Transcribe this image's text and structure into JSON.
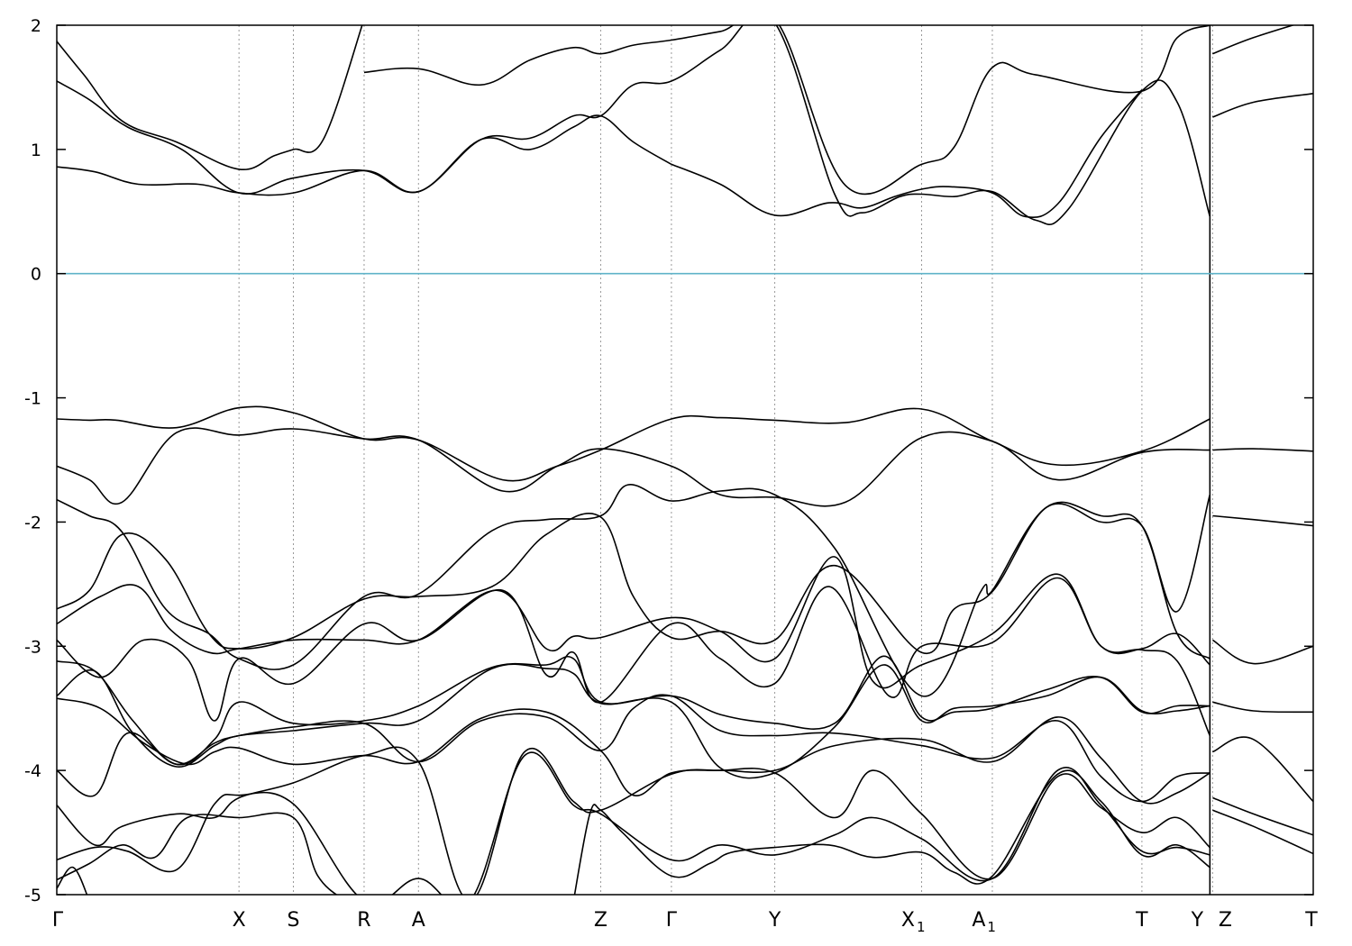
{
  "chart_data": {
    "type": "line",
    "title": "",
    "xlabel": "",
    "ylabel": "",
    "ylim": [
      -5,
      2
    ],
    "y_ticks": [
      2,
      1,
      0,
      -1,
      -2,
      -3,
      -4,
      -5
    ],
    "grid": false,
    "legend": "none",
    "fermi_level": 0,
    "colors": {
      "bands": "#000000",
      "fermi": "#5fb3c9",
      "kpath": "#9a9a9a"
    },
    "xlim": [
      0,
      23.1
    ],
    "kpoints": [
      {
        "label": "Γ",
        "sub": "",
        "x": 0
      },
      {
        "label": "X",
        "sub": "",
        "x": 3.35
      },
      {
        "label": "S",
        "sub": "",
        "x": 4.35
      },
      {
        "label": "R",
        "sub": "",
        "x": 5.65
      },
      {
        "label": "A",
        "sub": "",
        "x": 6.65
      },
      {
        "label": "Z",
        "sub": "",
        "x": 10.0
      },
      {
        "label": "Γ",
        "sub": "",
        "x": 11.3
      },
      {
        "label": "Y",
        "sub": "",
        "x": 13.2
      },
      {
        "label": "X",
        "sub": "1",
        "x": 15.9
      },
      {
        "label": "A",
        "sub": "1",
        "x": 17.2
      },
      {
        "label": "T",
        "sub": "",
        "x": 19.95
      },
      {
        "label": "Y",
        "sub": "",
        "x": 21.2
      },
      {
        "label": "Z",
        "sub": "",
        "x": 21.25
      },
      {
        "label": "T",
        "sub": "",
        "x": 23.1
      }
    ],
    "path_break_x": 21.2,
    "series": [
      {
        "x": [
          0,
          0.5,
          1.2,
          2.2,
          3.35,
          4.0,
          4.35,
          4.9,
          5.65
        ],
        "y": [
          1.87,
          1.6,
          1.23,
          1.06,
          0.84,
          0.95,
          1.0,
          1.08,
          2.05
        ]
      },
      {
        "x": [
          0,
          0.6,
          1.3,
          2.3,
          3.35,
          4.35,
          5.65,
          6.65,
          7.8,
          8.7,
          9.5,
          10.0,
          10.6,
          11.3
        ],
        "y": [
          1.55,
          1.4,
          1.18,
          1.0,
          0.65,
          0.77,
          0.83,
          0.66,
          1.08,
          1.0,
          1.18,
          1.27,
          1.06,
          0.88
        ]
      },
      {
        "x": [
          0,
          0.7,
          1.5,
          2.6,
          3.35,
          4.35,
          5.65,
          6.65,
          7.8,
          8.7,
          9.5,
          10.0,
          10.6,
          11.3,
          12.2,
          13.2,
          14.5,
          15.9,
          16.5,
          17.2,
          18.0,
          19.95,
          20.6,
          21.2
        ],
        "y": [
          0.86,
          0.82,
          0.72,
          0.72,
          0.65,
          0.65,
          0.83,
          0.66,
          1.08,
          1.09,
          1.27,
          1.27,
          1.52,
          1.55,
          1.8,
          2.05,
          0.71,
          0.88,
          1.02,
          1.66,
          1.6,
          1.47,
          1.9,
          2.0
        ]
      },
      {
        "x": [
          5.65,
          6.65,
          7.8,
          8.7,
          9.5,
          10.0,
          10.6,
          11.3,
          12.2,
          13.2,
          14.3,
          14.8,
          15.5,
          15.9,
          16.5,
          17.2,
          18.0,
          18.6,
          19.95,
          20.6,
          21.2
        ],
        "y": [
          1.62,
          1.65,
          1.52,
          1.72,
          1.82,
          1.77,
          1.84,
          1.88,
          1.95,
          2.02,
          0.64,
          0.49,
          0.62,
          0.64,
          0.62,
          0.66,
          0.43,
          0.52,
          1.47,
          1.38,
          0.46
        ]
      },
      {
        "x": [
          11.3,
          12.2,
          13.2,
          14.2,
          14.8,
          15.4,
          15.9,
          16.4,
          17.2,
          17.8,
          18.4,
          19.2,
          19.95
        ],
        "y": [
          0.88,
          0.72,
          0.47,
          0.57,
          0.53,
          0.62,
          0.68,
          0.7,
          0.65,
          0.46,
          0.56,
          1.1,
          1.48
        ]
      },
      {
        "x": [
          21.25,
          22.0,
          23.1
        ],
        "y": [
          1.77,
          1.9,
          2.05
        ]
      },
      {
        "x": [
          21.25,
          22.0,
          23.1
        ],
        "y": [
          1.26,
          1.38,
          1.45
        ]
      },
      {
        "x": [
          0,
          0.6,
          1.1,
          2.2,
          3.35,
          4.35,
          5.65,
          6.65,
          8.2,
          9.2,
          10.0,
          11.3,
          12.2,
          13.2,
          14.5,
          15.9,
          17.2,
          18.4,
          19.95,
          21.2
        ],
        "y": [
          -1.17,
          -1.18,
          -1.18,
          -1.24,
          -1.08,
          -1.12,
          -1.33,
          -1.34,
          -1.66,
          -1.55,
          -1.42,
          -1.17,
          -1.16,
          -1.18,
          -1.2,
          -1.09,
          -1.35,
          -1.54,
          -1.43,
          -1.17
        ]
      },
      {
        "x": [
          0,
          0.6,
          1.2,
          2.2,
          3.35,
          4.35,
          5.65,
          6.65,
          8.2,
          9.2,
          10.0,
          11.3,
          12.2,
          13.2,
          14.5,
          15.9,
          17.2,
          18.4,
          19.95,
          21.2
        ],
        "y": [
          -1.55,
          -1.66,
          -1.84,
          -1.28,
          -1.3,
          -1.25,
          -1.33,
          -1.34,
          -1.75,
          -1.55,
          -1.41,
          -1.55,
          -1.78,
          -1.8,
          -1.84,
          -1.32,
          -1.35,
          -1.66,
          -1.44,
          -1.42
        ]
      },
      {
        "x": [
          21.25,
          22.0,
          23.1
        ],
        "y": [
          -1.42,
          -1.41,
          -1.43
        ]
      },
      {
        "x": [
          0,
          0.6,
          1.2,
          2.0,
          2.8,
          3.35,
          4.35,
          5.65,
          6.65,
          8.0,
          9.0,
          10.0,
          10.5,
          11.3,
          12.2,
          13.2,
          14.3,
          15.9,
          17.0,
          17.2,
          18.2,
          19.2,
          19.95,
          20.6,
          21.2
        ],
        "y": [
          -1.82,
          -1.95,
          -2.08,
          -2.7,
          -2.9,
          -3.1,
          -3.15,
          -2.6,
          -2.58,
          -2.07,
          -1.98,
          -1.95,
          -1.7,
          -1.83,
          -1.75,
          -1.78,
          -2.21,
          -3.4,
          -2.55,
          -2.55,
          -1.88,
          -2.0,
          -2.03,
          -2.72,
          -1.78
        ]
      },
      {
        "x": [
          21.25,
          22.0,
          23.1
        ],
        "y": [
          -1.95,
          -1.98,
          -2.03
        ]
      },
      {
        "x": [
          0,
          0.6,
          1.2,
          2.0,
          2.8,
          3.35,
          4.35,
          5.65,
          6.65,
          8.0,
          9.0,
          10.0,
          10.6,
          11.3,
          12.2,
          13.2,
          14.3,
          15.9,
          16.5,
          17.2,
          18.2,
          19.2,
          19.95,
          20.6,
          21.2
        ],
        "y": [
          -2.7,
          -2.55,
          -2.1,
          -2.3,
          -2.9,
          -3.02,
          -2.93,
          -2.62,
          -2.6,
          -2.52,
          -2.1,
          -1.96,
          -2.6,
          -2.93,
          -2.88,
          -2.95,
          -2.35,
          -3.05,
          -2.7,
          -2.56,
          -1.88,
          -1.95,
          -2.03,
          -2.9,
          -3.1
        ]
      },
      {
        "x": [
          0,
          0.8,
          1.5,
          2.1,
          2.8,
          3.35,
          4.35,
          5.65,
          6.65,
          8.1,
          9.0,
          9.5,
          10.0,
          11.3,
          12.2,
          13.2,
          14.3,
          15.0,
          15.9,
          17.2,
          18.4,
          19.2,
          19.95,
          20.6,
          21.2
        ],
        "y": [
          -2.82,
          -2.6,
          -2.52,
          -2.87,
          -3.05,
          -3.02,
          -2.95,
          -2.95,
          -2.95,
          -2.55,
          -3.02,
          -2.92,
          -2.93,
          -2.77,
          -2.88,
          -3.1,
          -2.28,
          -3.28,
          -3.15,
          -2.9,
          -2.42,
          -3.0,
          -3.02,
          -2.9,
          -3.15
        ]
      },
      {
        "x": [
          21.25,
          22.0,
          23.1
        ],
        "y": [
          -2.95,
          -3.14,
          -3.0
        ]
      },
      {
        "x": [
          0,
          0.8,
          1.6,
          2.4,
          2.9,
          3.35,
          4.35,
          5.65,
          6.65,
          8.2,
          9.0,
          9.5,
          10.0,
          11.3,
          12.2,
          13.2,
          14.2,
          15.3,
          15.9,
          17.2,
          18.4,
          19.2,
          19.95,
          20.6,
          21.2
        ],
        "y": [
          -2.95,
          -3.25,
          -2.95,
          -3.1,
          -3.6,
          -3.1,
          -3.3,
          -2.82,
          -2.95,
          -2.55,
          -3.23,
          -3.05,
          -3.45,
          -2.82,
          -3.1,
          -3.3,
          -2.52,
          -3.4,
          -3.0,
          -2.97,
          -2.45,
          -3.0,
          -3.03,
          -3.12,
          -3.72
        ]
      },
      {
        "x": [
          0,
          0.7,
          1.4,
          2.2,
          2.9,
          3.35,
          4.35,
          5.65,
          6.65,
          8.0,
          9.0,
          9.5,
          10.0,
          11.3,
          12.2,
          13.2,
          14.3,
          15.2,
          15.9,
          16.5,
          17.2,
          18.2,
          19.2,
          19.95,
          20.6,
          21.2
        ],
        "y": [
          -3.12,
          -3.2,
          -3.6,
          -3.95,
          -3.75,
          -3.45,
          -3.62,
          -3.6,
          -3.48,
          -3.17,
          -3.15,
          -3.1,
          -3.45,
          -3.4,
          -3.55,
          -3.62,
          -3.62,
          -3.08,
          -3.57,
          -3.53,
          -3.5,
          -3.35,
          -3.25,
          -3.53,
          -3.48,
          -3.48
        ]
      },
      {
        "x": [
          0,
          0.7,
          1.4,
          2.2,
          2.9,
          3.35,
          4.35,
          5.65,
          6.65,
          8.0,
          9.0,
          9.5,
          10.0,
          11.3,
          12.2,
          13.2,
          14.3,
          15.2,
          15.9,
          16.5,
          17.2,
          18.2,
          19.2,
          19.95,
          20.6,
          21.2
        ],
        "y": [
          -3.4,
          -3.2,
          -3.7,
          -3.97,
          -3.8,
          -3.72,
          -3.68,
          -3.62,
          -3.6,
          -3.18,
          -3.18,
          -3.22,
          -3.46,
          -3.45,
          -3.98,
          -4.02,
          -3.65,
          -3.15,
          -3.6,
          -3.5,
          -3.48,
          -3.4,
          -3.25,
          -3.52,
          -3.52,
          -3.48
        ]
      },
      {
        "x": [
          21.25,
          22.0,
          23.1
        ],
        "y": [
          -3.45,
          -3.52,
          -3.53
        ]
      },
      {
        "x": [
          0,
          0.8,
          1.6,
          2.4,
          2.9,
          3.35,
          4.35,
          5.65,
          6.65,
          7.8,
          9.0,
          10.0,
          10.6,
          11.3,
          12.2,
          13.2,
          14.3,
          15.9,
          17.2,
          18.4,
          19.2,
          19.95,
          20.6,
          21.2
        ],
        "y": [
          -3.42,
          -3.5,
          -3.78,
          -3.95,
          -3.85,
          -3.82,
          -3.95,
          -3.88,
          -3.93,
          -3.58,
          -3.53,
          -3.84,
          -4.2,
          -4.02,
          -4.0,
          -4.0,
          -3.8,
          -3.75,
          -3.93,
          -3.57,
          -3.9,
          -4.25,
          -4.18,
          -4.02
        ]
      },
      {
        "x": [
          0,
          0.7,
          1.3,
          2.2,
          2.9,
          3.35,
          4.35,
          5.65,
          6.65,
          7.8,
          9.0,
          10.0,
          10.6,
          11.3,
          12.2,
          13.2,
          14.3,
          15.9,
          17.2,
          18.4,
          19.2,
          19.95,
          20.6,
          21.2
        ],
        "y": [
          -4.0,
          -4.2,
          -3.7,
          -3.95,
          -3.78,
          -3.72,
          -3.65,
          -3.62,
          -3.93,
          -3.6,
          -3.57,
          -3.84,
          -3.5,
          -3.4,
          -3.68,
          -3.72,
          -3.7,
          -3.8,
          -3.9,
          -3.6,
          -4.05,
          -4.25,
          -4.05,
          -4.02
        ]
      },
      {
        "x": [
          21.25,
          22.0,
          23.1
        ],
        "y": [
          -3.85,
          -3.75,
          -4.25
        ]
      },
      {
        "x": [
          0,
          0.7,
          1.2,
          2.2,
          2.9,
          3.35,
          4.35,
          5.65,
          6.65,
          7.6,
          8.6,
          9.5,
          10.0,
          11.3,
          12.2,
          13.2,
          14.3,
          15.0,
          15.9,
          17.2,
          18.4,
          19.2,
          19.95,
          20.6,
          21.2
        ],
        "y": [
          -4.28,
          -4.6,
          -4.45,
          -4.35,
          -4.38,
          -4.22,
          -4.1,
          -3.88,
          -3.93,
          -5.05,
          -3.85,
          -4.25,
          -4.32,
          -4.03,
          -4.0,
          -4.02,
          -4.38,
          -4.0,
          -4.35,
          -4.87,
          -4.05,
          -4.3,
          -4.5,
          -4.38,
          -4.62
        ]
      },
      {
        "x": [
          0,
          0.7,
          1.3,
          2.2,
          2.9,
          3.35,
          4.35,
          5.65,
          6.65,
          7.6,
          8.6,
          9.5,
          10.0,
          11.3,
          12.2,
          13.2,
          14.3,
          15.0,
          15.9,
          17.2,
          18.4,
          19.2,
          19.95,
          20.6,
          21.2
        ],
        "y": [
          -4.72,
          -4.62,
          -4.65,
          -4.8,
          -4.27,
          -4.2,
          -4.27,
          -5.05,
          -4.87,
          -5.05,
          -3.88,
          -4.28,
          -4.35,
          -4.72,
          -4.6,
          -4.68,
          -4.52,
          -4.38,
          -4.55,
          -4.87,
          -4.0,
          -4.28,
          -4.65,
          -4.62,
          -4.68
        ]
      },
      {
        "x": [
          21.25,
          22.0,
          23.1
        ],
        "y": [
          -4.22,
          -4.35,
          -4.52
        ]
      },
      {
        "x": [
          0,
          0.6,
          1.2,
          1.8,
          2.4,
          3.35,
          4.35,
          4.8,
          5.3
        ],
        "y": [
          -4.88,
          -4.75,
          -4.6,
          -4.7,
          -4.38,
          -4.38,
          -4.38,
          -4.85,
          -5.05
        ]
      },
      {
        "x": [
          9.5,
          9.8,
          10.0,
          10.4,
          11.3,
          12.0,
          12.4,
          13.2,
          14.2,
          15.0,
          15.9,
          16.5,
          17.2,
          18.4,
          19.2,
          19.95,
          20.6,
          21.2
        ],
        "y": [
          -5.05,
          -4.35,
          -4.32,
          -4.5,
          -4.85,
          -4.75,
          -4.66,
          -4.62,
          -4.6,
          -4.7,
          -4.66,
          -4.82,
          -4.85,
          -4.03,
          -4.25,
          -4.68,
          -4.6,
          -4.78
        ]
      },
      {
        "x": [
          21.25,
          22.0,
          23.1
        ],
        "y": [
          -4.32,
          -4.45,
          -4.67
        ]
      },
      {
        "x": [
          0,
          0.3,
          0.6
        ],
        "y": [
          -4.95,
          -4.78,
          -5.05
        ]
      }
    ]
  }
}
